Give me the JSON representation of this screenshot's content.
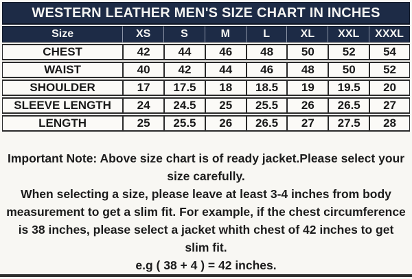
{
  "title": "WESTERN LEATHER MEN'S SIZE CHART IN INCHES",
  "table": {
    "header": [
      "Size",
      "XS",
      "S",
      "M",
      "L",
      "XL",
      "XXL",
      "XXXL"
    ],
    "rows": [
      {
        "label": "CHEST",
        "values": [
          "42",
          "44",
          "46",
          "48",
          "50",
          "52",
          "54"
        ]
      },
      {
        "label": "WAIST",
        "values": [
          "40",
          "42",
          "44",
          "46",
          "48",
          "50",
          "52"
        ]
      },
      {
        "label": "SHOULDER",
        "values": [
          "17",
          "17.5",
          "18",
          "18.5",
          "19",
          "19.5",
          "20"
        ]
      },
      {
        "label": "SLEEVE LENGTH",
        "values": [
          "24",
          "24.5",
          "25",
          "25.5",
          "26",
          "26.5",
          "27"
        ]
      },
      {
        "label": "LENGTH",
        "values": [
          "25",
          "25.5",
          "26",
          "26.5",
          "27",
          "27.5",
          "28"
        ]
      }
    ]
  },
  "note": {
    "paragraph1": "Important Note: Above size chart is of ready jacket.Please select your size carefully.",
    "paragraph2": "When selecting a size, please leave at least 3-4 inches from body measurement to get a slim fit. For example, if the chest circumference is 38 inches, please select a jacket whith chest of 42 inches to get slim fit.",
    "paragraph3": "e.g ( 38 + 4 ) = 42 inches."
  },
  "colors": {
    "navy": "#1d2b46",
    "background": "#f8f7f3",
    "border": "#2a2a2a",
    "text": "#1a1a1a"
  }
}
